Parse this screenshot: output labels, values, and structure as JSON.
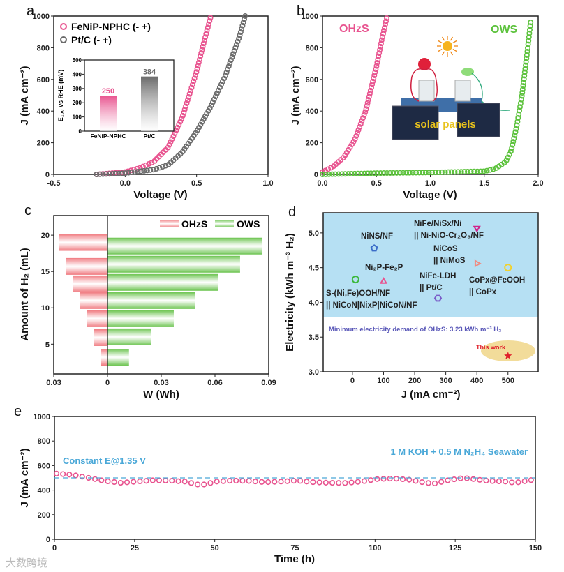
{
  "panels": {
    "a": "a",
    "b": "b",
    "c": "c",
    "d": "d",
    "e": "e"
  },
  "watermark": "大数跨境",
  "chart_data": [
    {
      "id": "a",
      "type": "scatter",
      "xlabel": "Voltage (V)",
      "ylabel": "J (mA cm⁻²)",
      "xlim": [
        -0.5,
        1.0
      ],
      "ylim": [
        0,
        1000
      ],
      "xticks": [
        -0.5,
        0.0,
        0.5,
        1.0
      ],
      "xtick_labels": [
        "-0.5",
        "0.0",
        "0.5",
        "1.0"
      ],
      "yticks": [
        0,
        200,
        400,
        600,
        800,
        1000
      ],
      "ytick_labels": [
        "0",
        "200",
        "400",
        "600",
        "800",
        "1000"
      ],
      "legend": "top-left",
      "series": [
        {
          "name": "FeNiP-NPHC (- +)",
          "color": "#e8538f",
          "points": [
            [
              -0.2,
              0
            ],
            [
              0,
              15
            ],
            [
              0.1,
              40
            ],
            [
              0.2,
              80
            ],
            [
              0.3,
              170
            ],
            [
              0.4,
              360
            ],
            [
              0.5,
              650
            ],
            [
              0.55,
              830
            ],
            [
              0.6,
              1000
            ]
          ]
        },
        {
          "name": "Pt/C (- +)",
          "color": "#6b6b6b",
          "points": [
            [
              -0.2,
              0
            ],
            [
              0,
              8
            ],
            [
              0.2,
              30
            ],
            [
              0.3,
              60
            ],
            [
              0.4,
              140
            ],
            [
              0.5,
              270
            ],
            [
              0.6,
              430
            ],
            [
              0.7,
              620
            ],
            [
              0.8,
              870
            ],
            [
              0.84,
              1000
            ]
          ]
        }
      ],
      "inset": {
        "type": "bar",
        "ylabel": "E₁₀₀ vs RHE (mV)",
        "ylim": [
          0,
          500
        ],
        "yticks": [
          0,
          100,
          200,
          300,
          400,
          500
        ],
        "ytick_labels": [
          "0",
          "100",
          "200",
          "300",
          "400",
          "500"
        ],
        "categories": [
          "FeNiP-NPHC",
          "Pt/C"
        ],
        "values": [
          250,
          384
        ],
        "value_labels": [
          "250",
          "384"
        ],
        "colors": [
          "#e8538f",
          "#6b6b6b"
        ]
      }
    },
    {
      "id": "b",
      "type": "scatter",
      "xlabel": "Voltage (V)",
      "ylabel": "J (mA cm⁻²)",
      "xlim": [
        0,
        2.0
      ],
      "ylim": [
        0,
        1000
      ],
      "xticks": [
        0,
        0.5,
        1.0,
        1.5,
        2.0
      ],
      "xtick_labels": [
        "0.0",
        "0.5",
        "1.0",
        "1.5",
        "2.0"
      ],
      "yticks": [
        0,
        200,
        400,
        600,
        800,
        1000
      ],
      "ytick_labels": [
        "0",
        "200",
        "400",
        "600",
        "800",
        "1000"
      ],
      "series": [
        {
          "name": "OHzS",
          "color": "#e8538f",
          "points": [
            [
              0,
              15
            ],
            [
              0.1,
              50
            ],
            [
              0.2,
              110
            ],
            [
              0.3,
              220
            ],
            [
              0.4,
              400
            ],
            [
              0.5,
              680
            ],
            [
              0.55,
              850
            ],
            [
              0.6,
              1000
            ]
          ]
        },
        {
          "name": "OWS",
          "color": "#5cc23c",
          "points": [
            [
              0,
              0
            ],
            [
              0.5,
              8
            ],
            [
              1.0,
              12
            ],
            [
              1.5,
              20
            ],
            [
              1.6,
              35
            ],
            [
              1.7,
              80
            ],
            [
              1.75,
              150
            ],
            [
              1.8,
              300
            ],
            [
              1.85,
              500
            ],
            [
              1.9,
              780
            ],
            [
              1.93,
              960
            ]
          ]
        }
      ],
      "photo_label": "solar panels"
    },
    {
      "id": "c",
      "type": "bar",
      "orientation": "horizontal",
      "xlabel": "W (Wh)",
      "ylabel": "Amount of H₂  (mL)",
      "xlim": [
        -0.03,
        0.09
      ],
      "ylim": [
        0.9,
        22.7
      ],
      "xticks": [
        -0.03,
        0,
        0.03,
        0.06,
        0.09
      ],
      "xtick_labels": [
        "0.03",
        "0",
        "0.03",
        "0.06",
        "0.09"
      ],
      "yticks": [
        5,
        10,
        15,
        20
      ],
      "ytick_labels": [
        "5",
        "10",
        "15",
        "20"
      ],
      "legend": "top-right",
      "series": [
        {
          "name": "OHzS",
          "color": "#f07a80",
          "direction": "left",
          "h2": [
            3.2,
            5.9,
            8.5,
            11,
            13.3,
            15.7,
            19
          ],
          "values": [
            0.0039,
            0.0076,
            0.0116,
            0.0155,
            0.0194,
            0.0232,
            0.0271
          ]
        },
        {
          "name": "OWS",
          "color": "#6cc450",
          "direction": "right",
          "h2": [
            3.2,
            6,
            8.5,
            11,
            13.5,
            16,
            18.5
          ],
          "values": [
            0.012,
            0.0245,
            0.037,
            0.049,
            0.0617,
            0.074,
            0.0865
          ]
        }
      ]
    },
    {
      "id": "d",
      "type": "scatter",
      "xlabel": "J (mA cm⁻²)",
      "ylabel": "Electricity (kWh m⁻³ H₂)",
      "xlim": [
        -94,
        597
      ],
      "ylim": [
        3.0,
        5.29
      ],
      "xticks": [
        0,
        100,
        200,
        300,
        400,
        500
      ],
      "xtick_labels": [
        "0",
        "100",
        "200",
        "300",
        "400",
        "500"
      ],
      "yticks": [
        3.0,
        3.5,
        4.0,
        4.5,
        5.0
      ],
      "ytick_labels": [
        "3.0",
        "3.5",
        "4.0",
        "4.5",
        "5.0"
      ],
      "shaded_above": 3.79,
      "shade_color": "#b6e0f3",
      "annotation": "Minimum electricity demand of OHzS: 3.23 kWh m⁻³ H₂",
      "points": [
        {
          "label": [
            "NiNS/NF"
          ],
          "x": 70,
          "y": 4.78,
          "marker": "pentagon",
          "color": "#3a6cc8"
        },
        {
          "label": [
            "NiFe/NiSx/Ni",
            "|| Ni-NiO-Cr₂O₃/NF"
          ],
          "x": 400,
          "y": 5.07,
          "marker": "triangle-down",
          "color": "#d0238a"
        },
        {
          "label": [
            "NiCoS",
            "|| NiMoS"
          ],
          "x": 400,
          "y": 4.56,
          "marker": "triangle-right",
          "color": "#f08a80"
        },
        {
          "label": [
            "CoPx@FeOOH",
            "|| CoPx"
          ],
          "x": 500,
          "y": 4.5,
          "marker": "circle",
          "color": "#f2d12a"
        },
        {
          "label": [
            "Ni₂P-Fe₂P"
          ],
          "x": 100,
          "y": 4.3,
          "marker": "triangle-up",
          "color": "#e8538f"
        },
        {
          "label": [
            "S-(Ni,Fe)OOH/NF",
            "|| NiCoN|NixP|NiCoN/NF"
          ],
          "x": 10,
          "y": 4.33,
          "marker": "circle",
          "color": "#3cb83c"
        },
        {
          "label": [
            "NiFe-LDH",
            "|| Pt/C"
          ],
          "x": 275,
          "y": 4.06,
          "marker": "hexagon",
          "color": "#7a5cc8"
        },
        {
          "label": [
            "This work"
          ],
          "x": 500,
          "y": 3.23,
          "marker": "star",
          "color": "#e0202a"
        }
      ]
    },
    {
      "id": "e",
      "type": "scatter",
      "xlabel": "Time (h)",
      "ylabel": "J (mA cm⁻²)",
      "xlim": [
        0,
        150
      ],
      "ylim": [
        0,
        1000
      ],
      "xticks": [
        0,
        25,
        50,
        75,
        100,
        125,
        150
      ],
      "xtick_labels": [
        "0",
        "25",
        "50",
        "75",
        "100",
        "125",
        "150"
      ],
      "yticks": [
        0,
        200,
        400,
        600,
        800,
        1000
      ],
      "ytick_labels": [
        "0",
        "200",
        "400",
        "600",
        "800",
        "1000"
      ],
      "reference_line": 500,
      "annotations": [
        "Constant E@1.35 V",
        "1 M KOH + 0.5 M N₂H₄ Seawater"
      ],
      "series": [
        {
          "name": "J",
          "color": "#e8538f",
          "points": [
            [
              0,
              535
            ],
            [
              5,
              525
            ],
            [
              10,
              500
            ],
            [
              15,
              475
            ],
            [
              20,
              460
            ],
            [
              25,
              470
            ],
            [
              30,
              480
            ],
            [
              35,
              478
            ],
            [
              40,
              470
            ],
            [
              45,
              440
            ],
            [
              50,
              470
            ],
            [
              55,
              478
            ],
            [
              60,
              475
            ],
            [
              65,
              465
            ],
            [
              70,
              470
            ],
            [
              75,
              478
            ],
            [
              80,
              465
            ],
            [
              85,
              460
            ],
            [
              90,
              458
            ],
            [
              95,
              470
            ],
            [
              100,
              490
            ],
            [
              105,
              495
            ],
            [
              110,
              485
            ],
            [
              115,
              460
            ],
            [
              118,
              455
            ],
            [
              122,
              480
            ],
            [
              127,
              500
            ],
            [
              130,
              490
            ],
            [
              135,
              475
            ],
            [
              140,
              470
            ],
            [
              143,
              460
            ],
            [
              148,
              482
            ]
          ]
        }
      ]
    }
  ]
}
